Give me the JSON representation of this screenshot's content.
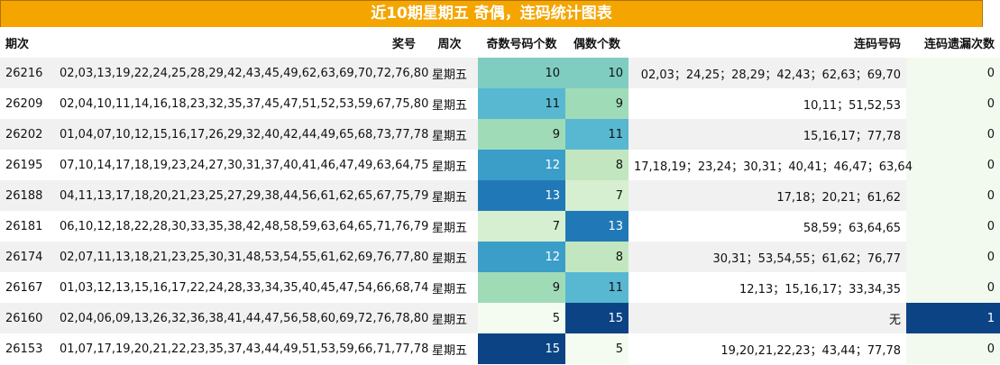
{
  "title": "近10期星期五 奇偶，连码统计图表",
  "headers": [
    "期次",
    "奖号",
    "周次",
    "奇数号码个数",
    "偶数个数",
    "连码号码",
    "连码遗漏次数"
  ],
  "colors": {
    "title_bg": "#f5a500",
    "scale": {
      "5": "#f4fbf1",
      "7": "#d6efd0",
      "8": "#c2e7c0",
      "9": "#a0dbb8",
      "10": "#7ecdc0",
      "11": "#58b8d2",
      "12": "#3b9ec9",
      "13": "#2079b6",
      "15": "#0b4384"
    },
    "miss": {
      "0": "#f2faef",
      "1": "#0b4384"
    }
  },
  "rows": [
    {
      "issue": "26216",
      "numbers": "02,03,13,19,22,24,25,28,29,42,43,45,49,62,63,69,70,72,76,80",
      "week": "星期五",
      "odd": 10,
      "even": 10,
      "consec": "02,03；24,25；28,29；42,43；62,63；69,70",
      "miss": 0
    },
    {
      "issue": "26209",
      "numbers": "02,04,10,11,14,16,18,23,32,35,37,45,47,51,52,53,59,67,75,80",
      "week": "星期五",
      "odd": 11,
      "even": 9,
      "consec": "10,11；51,52,53",
      "miss": 0
    },
    {
      "issue": "26202",
      "numbers": "01,04,07,10,12,15,16,17,26,29,32,40,42,44,49,65,68,73,77,78",
      "week": "星期五",
      "odd": 9,
      "even": 11,
      "consec": "15,16,17；77,78",
      "miss": 0
    },
    {
      "issue": "26195",
      "numbers": "07,10,14,17,18,19,23,24,27,30,31,37,40,41,46,47,49,63,64,75",
      "week": "星期五",
      "odd": 12,
      "even": 8,
      "consec": "17,18,19；23,24；30,31；40,41；46,47；63,64",
      "miss": 0
    },
    {
      "issue": "26188",
      "numbers": "04,11,13,17,18,20,21,23,25,27,29,38,44,56,61,62,65,67,75,79",
      "week": "星期五",
      "odd": 13,
      "even": 7,
      "consec": "17,18；20,21；61,62",
      "miss": 0
    },
    {
      "issue": "26181",
      "numbers": "06,10,12,18,22,28,30,33,35,38,42,48,58,59,63,64,65,71,76,79",
      "week": "星期五",
      "odd": 7,
      "even": 13,
      "consec": "58,59；63,64,65",
      "miss": 0
    },
    {
      "issue": "26174",
      "numbers": "02,07,11,13,18,21,23,25,30,31,48,53,54,55,61,62,69,76,77,80",
      "week": "星期五",
      "odd": 12,
      "even": 8,
      "consec": "30,31；53,54,55；61,62；76,77",
      "miss": 0
    },
    {
      "issue": "26167",
      "numbers": "01,03,12,13,15,16,17,22,24,28,33,34,35,40,45,47,54,66,68,74",
      "week": "星期五",
      "odd": 9,
      "even": 11,
      "consec": "12,13；15,16,17；33,34,35",
      "miss": 0
    },
    {
      "issue": "26160",
      "numbers": "02,04,06,09,13,26,32,36,38,41,44,47,56,58,60,69,72,76,78,80",
      "week": "星期五",
      "odd": 5,
      "even": 15,
      "consec": "无",
      "miss": 1
    },
    {
      "issue": "26153",
      "numbers": "01,07,17,19,20,21,22,23,35,37,43,44,49,51,53,59,66,71,77,78",
      "week": "星期五",
      "odd": 15,
      "even": 5,
      "consec": "19,20,21,22,23；43,44；77,78",
      "miss": 0
    }
  ]
}
